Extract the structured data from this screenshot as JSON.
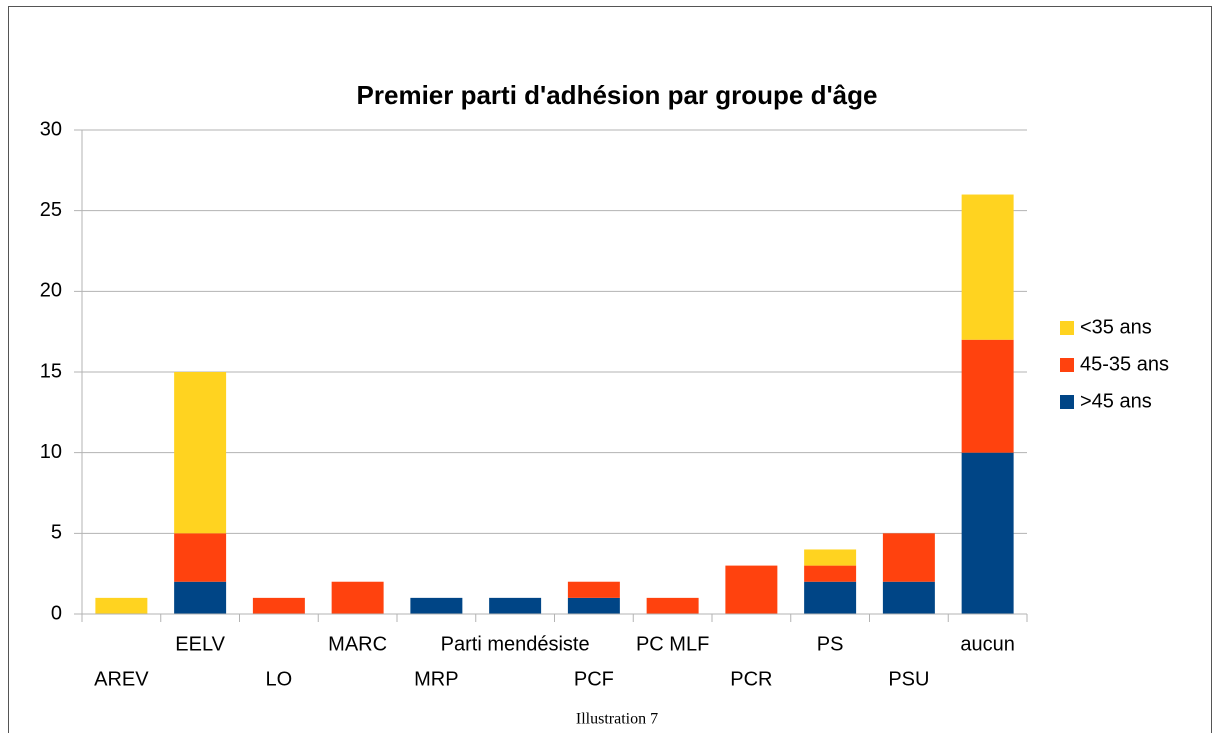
{
  "chart_data": {
    "type": "bar",
    "stacked": true,
    "title": "Premier parti d'adhésion par groupe d'âge",
    "categories": [
      "AREV",
      "EELV",
      "LO",
      "MARC",
      "MRP",
      "Parti mendésiste",
      "PCF",
      "PC MLF",
      "PCR",
      "PS",
      "PSU",
      "aucun"
    ],
    "series": [
      {
        "name": ">45 ans",
        "color": "#004586",
        "values": [
          0,
          2,
          0,
          0,
          1,
          1,
          1,
          0,
          0,
          2,
          2,
          10
        ]
      },
      {
        "name": "45-35 ans",
        "color": "#ff420e",
        "values": [
          0,
          3,
          1,
          2,
          0,
          0,
          1,
          1,
          3,
          1,
          3,
          7
        ]
      },
      {
        "name": "<35 ans",
        "color": "#ffd320",
        "values": [
          1,
          10,
          0,
          0,
          0,
          0,
          0,
          0,
          0,
          1,
          0,
          9
        ]
      }
    ],
    "ylim": [
      0,
      30
    ],
    "yticks": [
      0,
      5,
      10,
      15,
      20,
      25,
      30
    ],
    "grid": true,
    "legend": "right",
    "caption": "Illustration 7"
  }
}
